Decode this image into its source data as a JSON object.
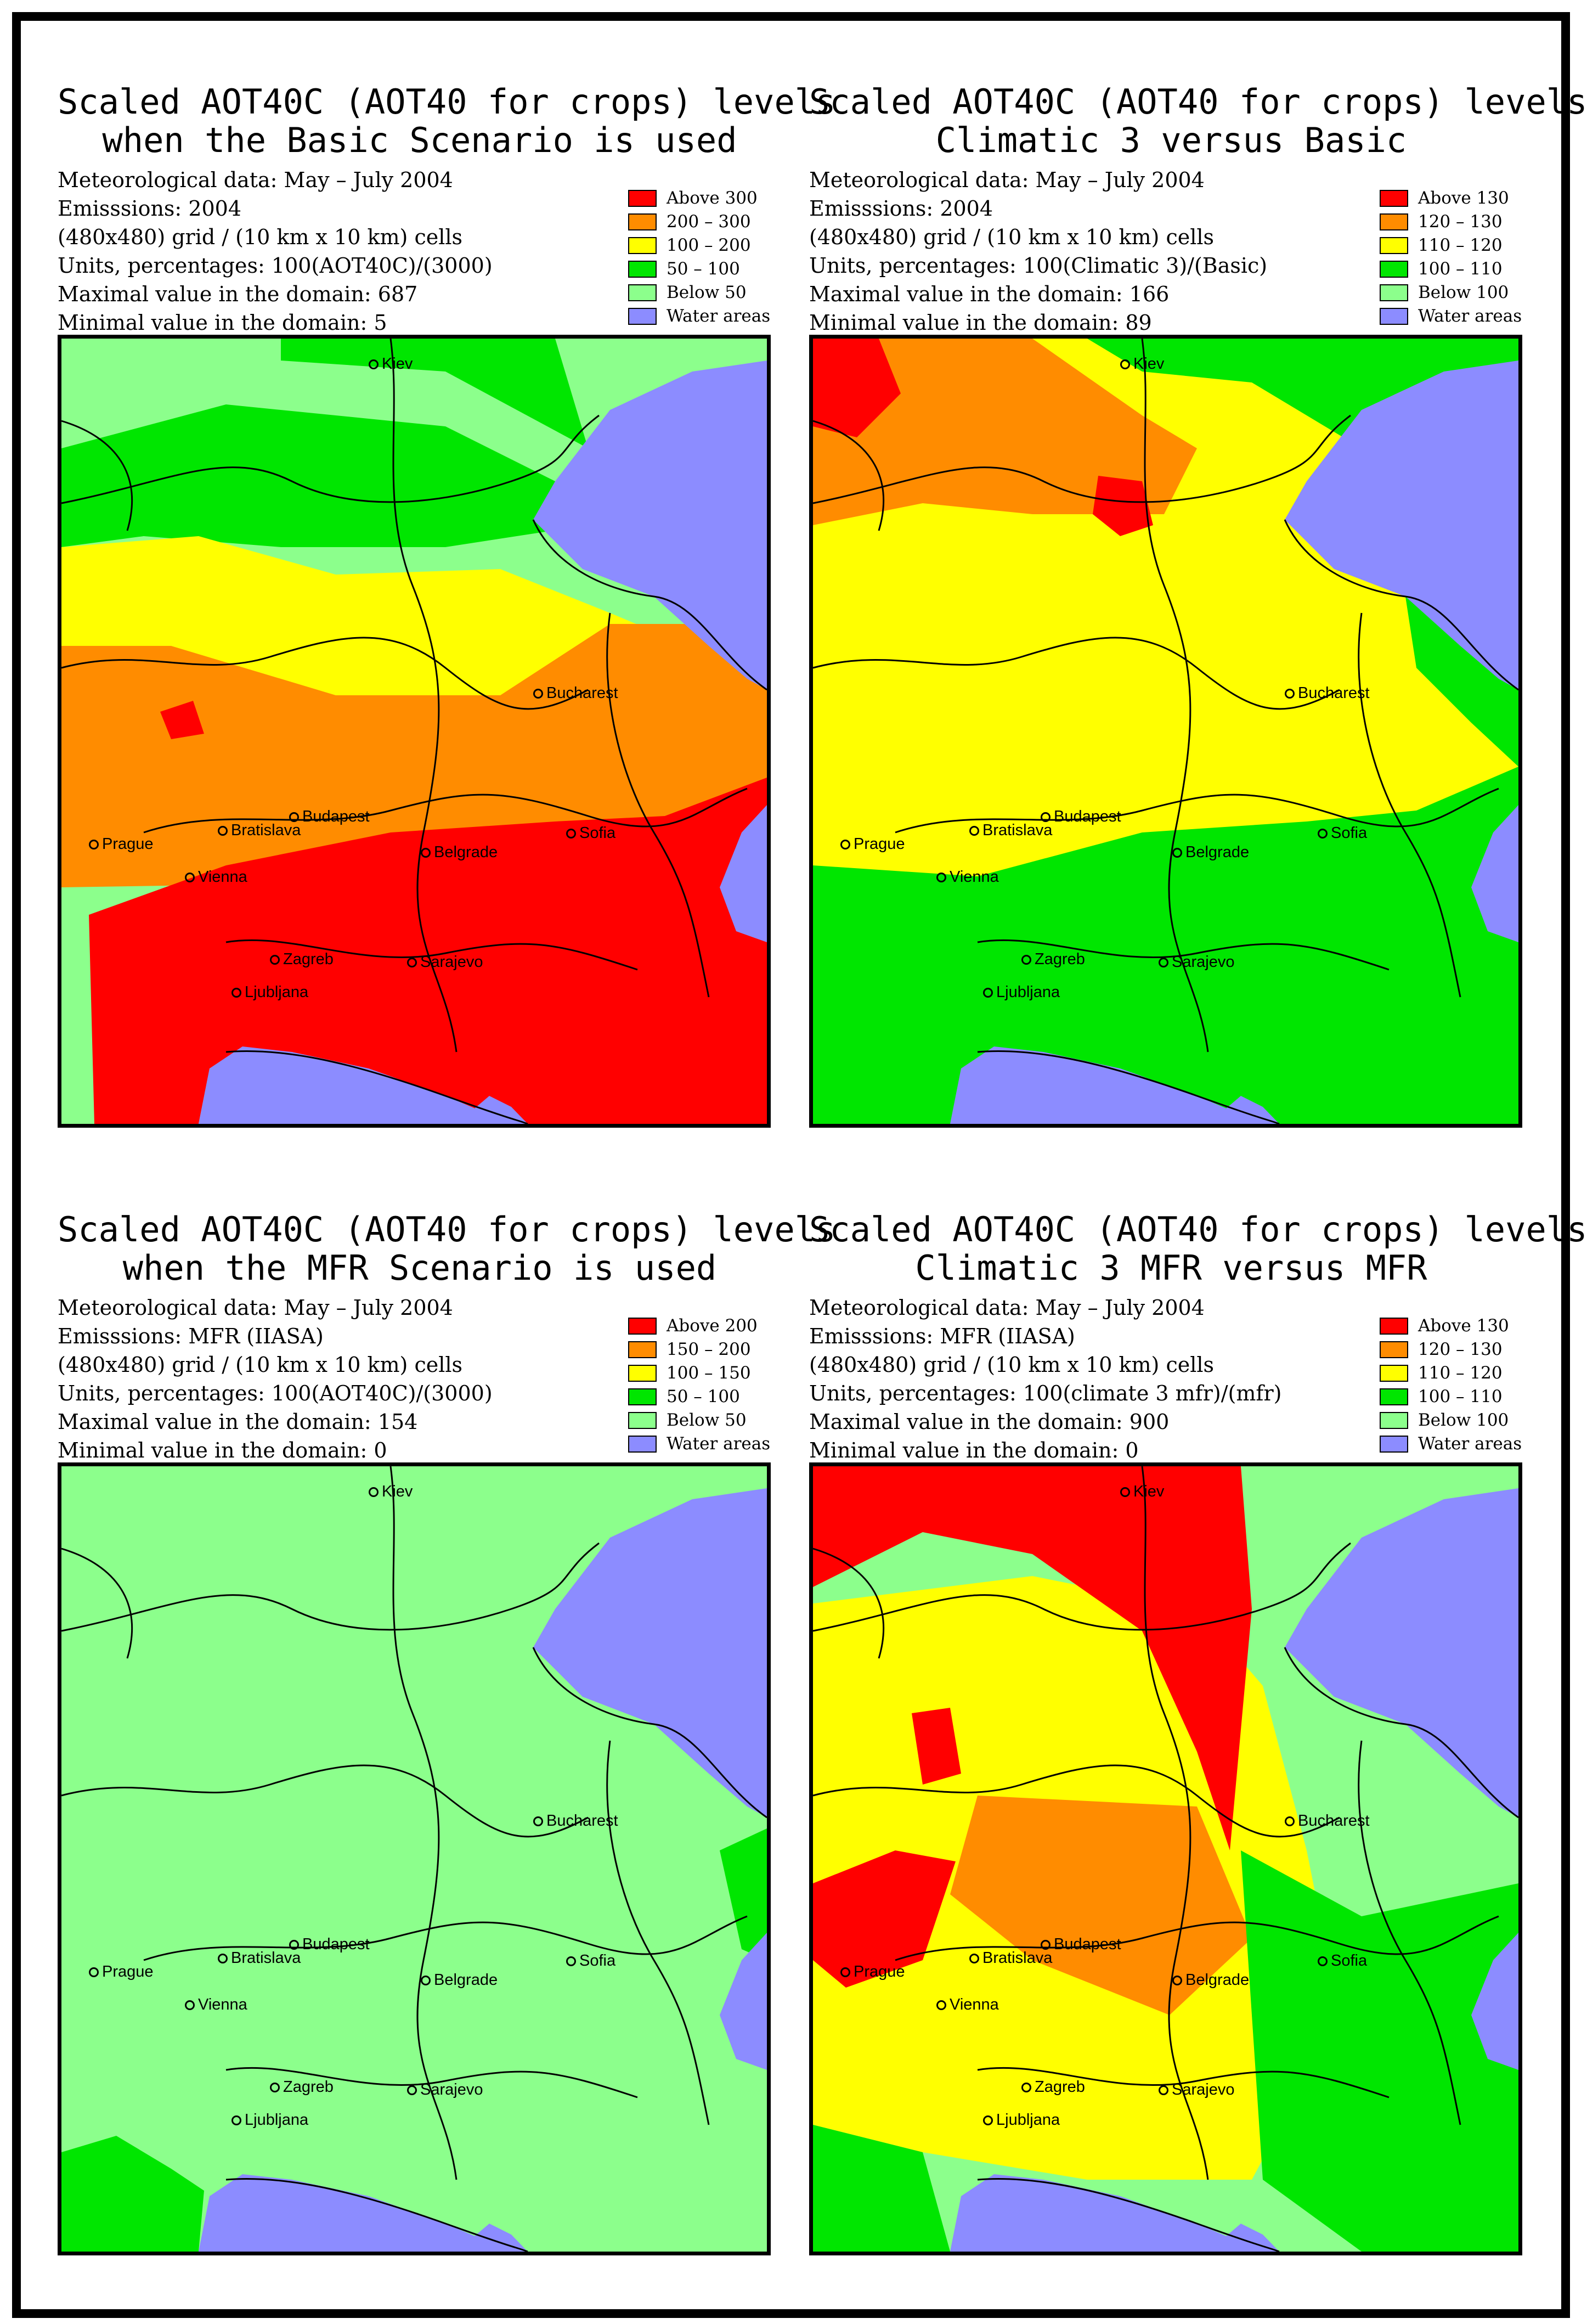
{
  "panels": [
    {
      "id": "basic",
      "title_line1": "Scaled AOT40C (AOT40 for crops) levels",
      "title_line2": "when the Basic Scenario is used",
      "info": [
        "Meteorological data: May – July 2004",
        "Emisssions: 2004",
        "(480x480) grid / (10 km x 10 km) cells",
        "Units, percentages: 100(AOT40C)/(3000)",
        "Maximal value in the domain:    687",
        "Minimal value in the domain:      5"
      ],
      "legend": [
        {
          "label": "Above 300",
          "color": "#ff0000"
        },
        {
          "label": "200 – 300",
          "color": "#ff8c00"
        },
        {
          "label": "100 – 200",
          "color": "#ffff00"
        },
        {
          "label": "50 – 100",
          "color": "#00e600"
        },
        {
          "label": "Below  50",
          "color": "#8cff8c"
        },
        {
          "label": "Water areas",
          "color": "#8c8cff"
        }
      ]
    },
    {
      "id": "climatic3-basic",
      "title_line1": "Scaled AOT40C (AOT40 for crops) levels",
      "title_line2": "Climatic 3 versus Basic",
      "info": [
        "Meteorological data: May – July 2004",
        "Emisssions: 2004",
        "(480x480) grid / (10 km x 10 km) cells",
        "Units, percentages: 100(Climatic 3)/(Basic)",
        "Maximal value in the domain:    166",
        "Minimal value in the domain:     89"
      ],
      "legend": [
        {
          "label": "Above 130",
          "color": "#ff0000"
        },
        {
          "label": "120 – 130",
          "color": "#ff8c00"
        },
        {
          "label": "110 – 120",
          "color": "#ffff00"
        },
        {
          "label": "100 – 110",
          "color": "#00e600"
        },
        {
          "label": "Below 100",
          "color": "#8cff8c"
        },
        {
          "label": "Water areas",
          "color": "#8c8cff"
        }
      ]
    },
    {
      "id": "mfr",
      "title_line1": "Scaled AOT40C (AOT40 for crops) levels",
      "title_line2": "when the MFR Scenario is used",
      "info": [
        "Meteorological data: May – July 2004",
        "Emisssions: MFR (IIASA)",
        "(480x480) grid / (10 km x 10 km) cells",
        "Units, percentages: 100(AOT40C)/(3000)",
        "Maximal value in the domain:    154",
        "Minimal value in the domain:      0"
      ],
      "legend": [
        {
          "label": "Above 200",
          "color": "#ff0000"
        },
        {
          "label": "150 – 200",
          "color": "#ff8c00"
        },
        {
          "label": "100 – 150",
          "color": "#ffff00"
        },
        {
          "label": "50 – 100",
          "color": "#00e600"
        },
        {
          "label": "Below  50",
          "color": "#8cff8c"
        },
        {
          "label": "Water areas",
          "color": "#8c8cff"
        }
      ]
    },
    {
      "id": "climatic3mfr-mfr",
      "title_line1": "Scaled AOT40C (AOT40 for crops) levels",
      "title_line2": "Climatic 3 MFR versus MFR",
      "info": [
        "Meteorological data: May – July 2004",
        "Emisssions: MFR (IIASA)",
        "(480x480) grid / (10 km x 10 km) cells",
        "Units, percentages: 100(climate 3 mfr)/(mfr)",
        "Maximal value in the domain:    900",
        "Minimal value in the domain:      0"
      ],
      "legend": [
        {
          "label": "Above 130",
          "color": "#ff0000"
        },
        {
          "label": "120 – 130",
          "color": "#ff8c00"
        },
        {
          "label": "110 – 120",
          "color": "#ffff00"
        },
        {
          "label": "100 – 110",
          "color": "#00e600"
        },
        {
          "label": "Below 100",
          "color": "#8cff8c"
        },
        {
          "label": "Water areas",
          "color": "#8c8cff"
        }
      ]
    }
  ],
  "cities": [
    "Kiev",
    "Bucharest",
    "Budapest",
    "Bratislava",
    "Prague",
    "Vienna",
    "Belgrade",
    "Sofia",
    "Zagreb",
    "Sarajevo",
    "Ljubljana"
  ]
}
